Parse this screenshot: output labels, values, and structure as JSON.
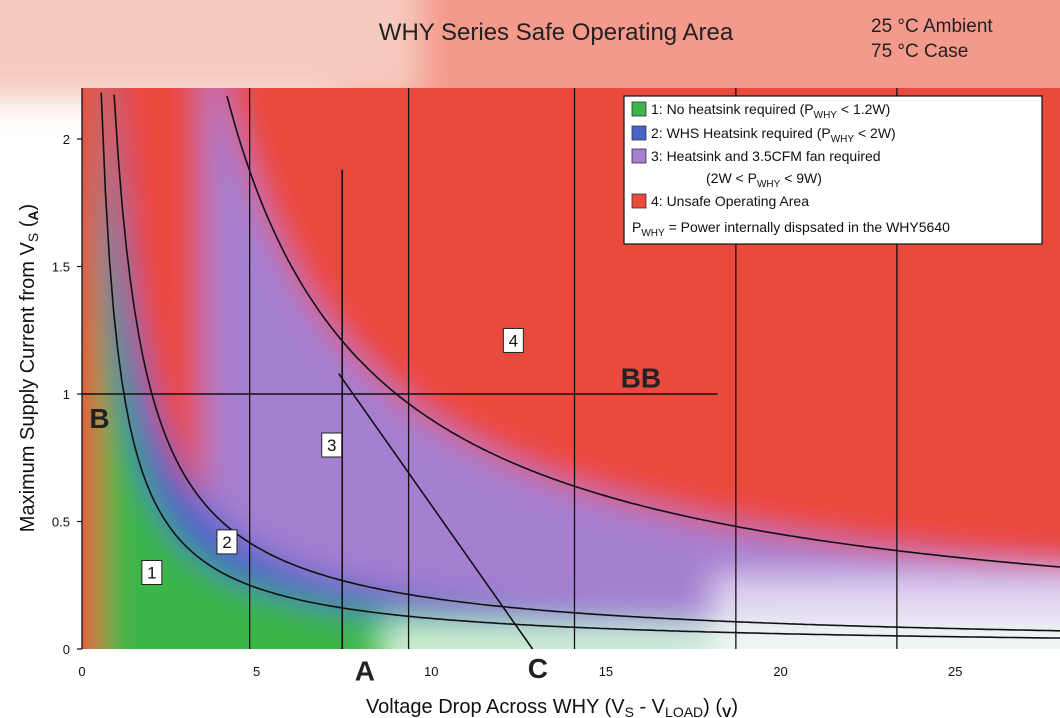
{
  "chart_data": {
    "type": "area",
    "title": "WHY Series Safe Operating Area",
    "conditions": [
      "25 °C Ambient",
      "75 °C Case"
    ],
    "xlabel_parts": [
      "Voltage Drop Across WHY (V",
      "S",
      " - V",
      "LOAD",
      ") (",
      "V",
      ")"
    ],
    "ylabel_parts": [
      "Maximum Supply Current from V",
      "S",
      " (",
      "A",
      ")"
    ],
    "xlim": [
      0,
      28
    ],
    "ylim": [
      0,
      2.2
    ],
    "x_ticks": [
      0,
      5,
      10,
      15,
      20,
      25
    ],
    "x_tick_labels": [
      "0",
      "5",
      "10",
      "15",
      "20",
      "25"
    ],
    "y_ticks": [
      0,
      0.5,
      1,
      1.5,
      2
    ],
    "y_tick_labels": [
      "0",
      "0.5",
      "1",
      "1.5",
      "2"
    ],
    "vertical_gridlines_x": [
      4.8,
      9.35,
      14.1,
      18.72,
      23.33
    ],
    "power_curves": [
      {
        "name": "P = 1.2W",
        "power_w": 1.2
      },
      {
        "name": "P = 2W",
        "power_w": 2
      },
      {
        "name": "P = 9W",
        "power_w": 9
      }
    ],
    "regions": [
      {
        "id": "1",
        "label": "1",
        "color": "#3cb54a",
        "label_x": 2,
        "label_y": 0.3
      },
      {
        "id": "2",
        "label": "2",
        "color": "#4a63c9",
        "label_x": 4.15,
        "label_y": 0.42
      },
      {
        "id": "3",
        "label": "3",
        "color": "#a57fd0",
        "label_x": 7.15,
        "label_y": 0.8
      },
      {
        "id": "4",
        "label": "4",
        "color": "#ea4a3c",
        "label_x": 12.35,
        "label_y": 1.21
      }
    ],
    "lines": [
      {
        "name": "A",
        "points": [
          [
            7.45,
            0
          ],
          [
            7.45,
            1.88
          ]
        ]
      },
      {
        "name": "BB",
        "points": [
          [
            0,
            1.0
          ],
          [
            18.2,
            1.0
          ]
        ]
      },
      {
        "name": "C",
        "points": [
          [
            7.35,
            1.08
          ],
          [
            12.9,
            0
          ]
        ]
      }
    ],
    "annotations": [
      {
        "text": "A",
        "x": 8.1,
        "y": -0.085
      },
      {
        "text": "B",
        "x": 0.5,
        "y": 0.905
      },
      {
        "text": "BB",
        "x": 16.0,
        "y": 1.065
      },
      {
        "text": "C",
        "x": 13.05,
        "y": -0.075
      }
    ],
    "legend": {
      "position": "top-right",
      "entries": [
        {
          "color": "#3cb54a",
          "parts": [
            "1:  No heatsink required (P",
            "WHY",
            " < 1.2W)"
          ]
        },
        {
          "color": "#4a63c9",
          "parts": [
            "2:  WHS Heatsink required (P",
            "WHY",
            " < 2W)"
          ]
        },
        {
          "color": "#a57fd0",
          "parts": [
            "3:  Heatsink and 3.5CFM fan required"
          ]
        },
        {
          "color": null,
          "parts": [
            "(2W < P",
            "WHY",
            " < 9W)"
          ]
        },
        {
          "color": "#ea4a3c",
          "parts": [
            "4:  Unsafe Operating Area"
          ]
        }
      ],
      "note_parts": [
        "P",
        "WHY",
        " = Power internally dispsated in the WHY5640"
      ]
    }
  }
}
